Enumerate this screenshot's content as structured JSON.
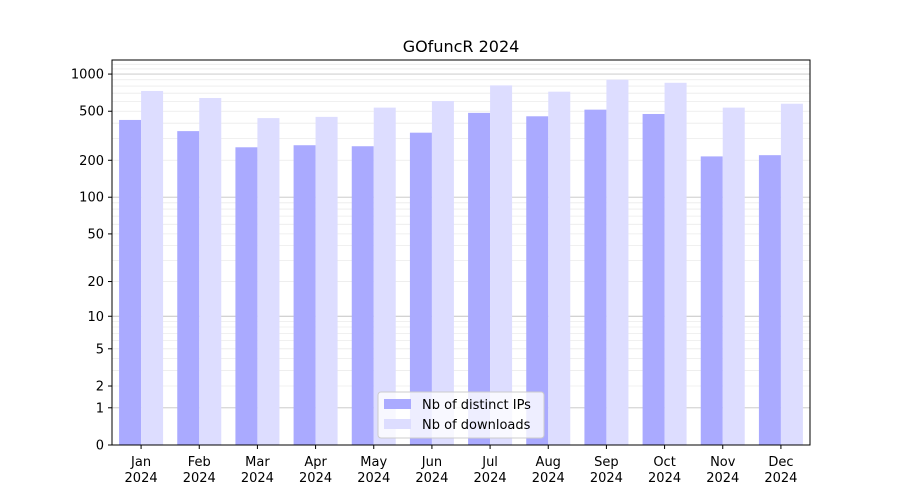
{
  "chart_data": {
    "type": "bar",
    "title": "GOfuncR 2024",
    "xlabel": "",
    "ylabel": "",
    "scale": "symlog",
    "ylim": [
      0,
      1300
    ],
    "categories": [
      [
        "Jan",
        "2024"
      ],
      [
        "Feb",
        "2024"
      ],
      [
        "Mar",
        "2024"
      ],
      [
        "Apr",
        "2024"
      ],
      [
        "May",
        "2024"
      ],
      [
        "Jun",
        "2024"
      ],
      [
        "Jul",
        "2024"
      ],
      [
        "Aug",
        "2024"
      ],
      [
        "Sep",
        "2024"
      ],
      [
        "Oct",
        "2024"
      ],
      [
        "Nov",
        "2024"
      ],
      [
        "Dec",
        "2024"
      ]
    ],
    "y_ticks": [
      0,
      1,
      2,
      5,
      10,
      20,
      50,
      100,
      200,
      500,
      1000
    ],
    "y_tick_labels": [
      "0",
      "1",
      "2",
      "5",
      "10",
      "20",
      "50",
      "100",
      "200",
      "500",
      "1000"
    ],
    "grid": true,
    "legend_position": "bottom-center",
    "series": [
      {
        "name": "Nb of distinct IPs",
        "color": "#aaaaff",
        "values": [
          425,
          345,
          255,
          265,
          260,
          335,
          485,
          455,
          515,
          475,
          215,
          220
        ]
      },
      {
        "name": "Nb of downloads",
        "color": "#ddddff",
        "values": [
          730,
          640,
          440,
          450,
          535,
          605,
          810,
          720,
          900,
          850,
          535,
          575
        ]
      }
    ]
  }
}
